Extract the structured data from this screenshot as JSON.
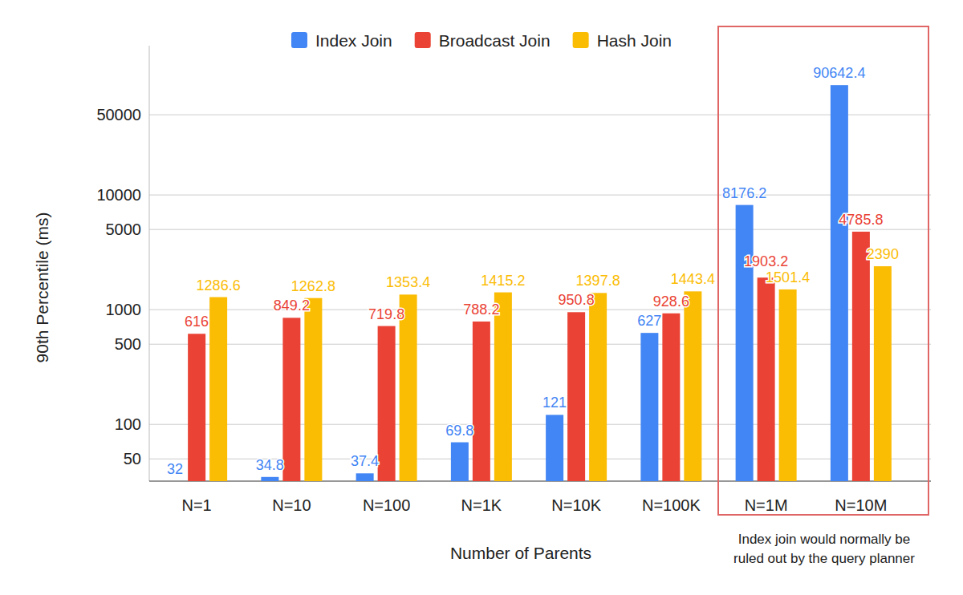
{
  "chart_data": {
    "type": "bar",
    "x_label": "Number of Parents",
    "y_label": "90th Percentile (ms)",
    "categories": [
      "N=1",
      "N=10",
      "N=100",
      "N=1K",
      "N=10K",
      "N=100K",
      "N=1M",
      "N=10M"
    ],
    "series": [
      {
        "name": "Index Join",
        "color": "#4285f4",
        "values": [
          32,
          34.8,
          37.4,
          69.8,
          121,
          627,
          8176.2,
          90642.4
        ]
      },
      {
        "name": "Broadcast Join",
        "color": "#ea4335",
        "values": [
          616,
          849.2,
          719.8,
          788.2,
          950.8,
          928.6,
          1903.2,
          4785.8
        ]
      },
      {
        "name": "Hash Join",
        "color": "#fbbc04",
        "values": [
          1286.6,
          1262.8,
          1353.4,
          1415.2,
          1397.8,
          1443.4,
          1501.4,
          2390
        ]
      }
    ],
    "ylim": [
      32,
      200000
    ],
    "yticks": [
      50,
      100,
      500,
      1000,
      5000,
      10000,
      50000
    ],
    "log": "y",
    "grid": true,
    "legend": "top",
    "data_labels": true,
    "annotations": [
      "Index join would normally be ruled out by the query planner"
    ]
  }
}
